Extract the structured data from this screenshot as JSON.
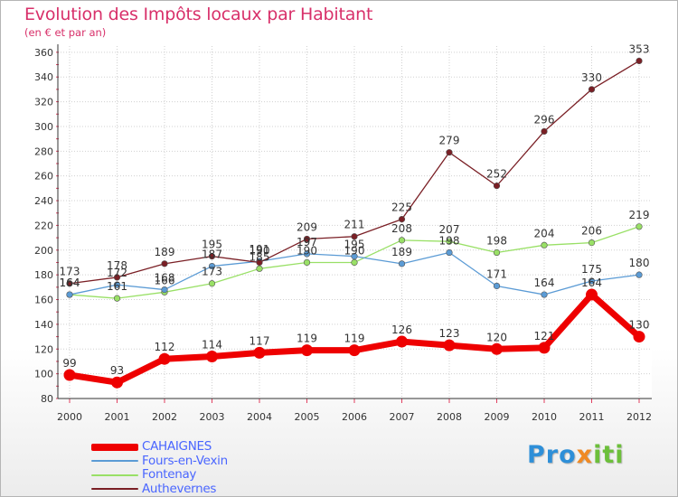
{
  "chart_data": {
    "type": "line",
    "title": "Evolution des Impôts locaux par Habitant",
    "subtitle": "(en € et par an)",
    "x": [
      "2000",
      "2001",
      "2002",
      "2003",
      "2004",
      "2005",
      "2006",
      "2007",
      "2008",
      "2009",
      "2010",
      "2011",
      "2012"
    ],
    "ylim": [
      80,
      365
    ],
    "yticks": [
      80,
      100,
      120,
      140,
      160,
      180,
      200,
      220,
      240,
      260,
      280,
      300,
      320,
      340,
      360
    ],
    "grid": true,
    "series": [
      {
        "name": "CAHAIGNES",
        "color": "#ee0000",
        "values": [
          99,
          93,
          112,
          114,
          117,
          119,
          119,
          126,
          123,
          120,
          121,
          164,
          130
        ],
        "labels": [
          "99",
          "93",
          "112",
          "114",
          "117",
          "119",
          "119",
          "126",
          "123",
          "120",
          "121",
          "164",
          "130"
        ]
      },
      {
        "name": "Fours-en-Vexin",
        "color": "#5b9bd5",
        "values": [
          164,
          172,
          168,
          187,
          191,
          197,
          195,
          189,
          198,
          171,
          164,
          175,
          180
        ],
        "labels": [
          "164",
          "172",
          "168",
          "187",
          "191",
          "197",
          "195",
          "189",
          "198",
          "171",
          "164",
          "175",
          "180"
        ]
      },
      {
        "name": "Fontenay",
        "color": "#99e066",
        "values": [
          164,
          161,
          166,
          173,
          185,
          190,
          190,
          208,
          207,
          198,
          204,
          206,
          219
        ],
        "labels": [
          "164",
          "161",
          "166",
          "173",
          "185",
          "190",
          "190",
          "208",
          "207",
          "198",
          "204",
          "206",
          "219"
        ]
      },
      {
        "name": "Authevernes",
        "color": "#7a1f25",
        "values": [
          173,
          178,
          189,
          195,
          190,
          209,
          211,
          225,
          279,
          252,
          296,
          330,
          353
        ],
        "labels": [
          "173",
          "178",
          "189",
          "195",
          "190",
          "209",
          "211",
          "225",
          "279",
          "252",
          "296",
          "330",
          "353"
        ]
      }
    ]
  },
  "logo": {
    "p1": "Pro",
    "p2": "x",
    "p3": "iti"
  }
}
